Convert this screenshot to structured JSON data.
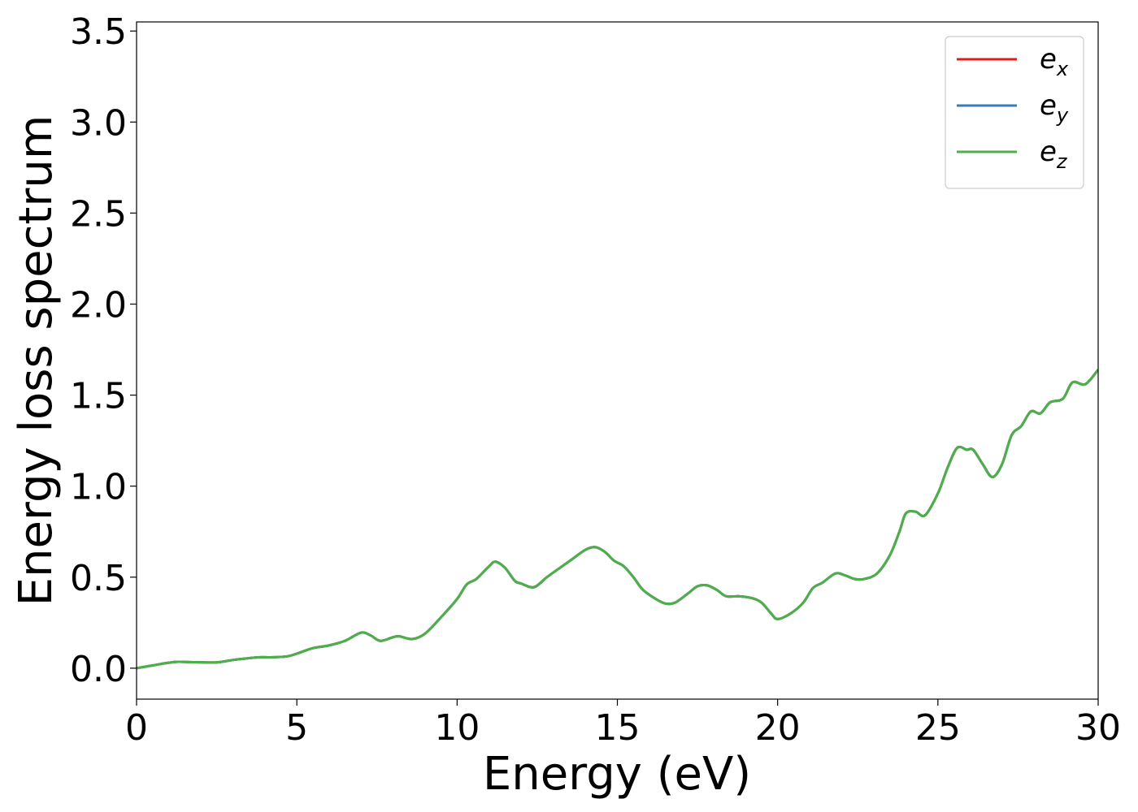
{
  "chart_data": {
    "type": "line",
    "title": "",
    "xlabel": "Energy (eV)",
    "ylabel": "Energy loss spectrum",
    "xlim": [
      0,
      30
    ],
    "ylim": [
      -0.17,
      3.55
    ],
    "xticks": [
      0,
      5,
      10,
      15,
      20,
      25,
      30
    ],
    "xtick_labels": [
      "0",
      "5",
      "10",
      "15",
      "20",
      "25",
      "30"
    ],
    "yticks": [
      0.0,
      0.5,
      1.0,
      1.5,
      2.0,
      2.5,
      3.0,
      3.5
    ],
    "ytick_labels": [
      "0.0",
      "0.5",
      "1.0",
      "1.5",
      "2.0",
      "2.5",
      "3.0",
      "3.5"
    ],
    "grid": false,
    "legend": {
      "placement": "top-right",
      "entries": [
        {
          "base": "e",
          "sub": "x",
          "color": "#e41a1c"
        },
        {
          "base": "e",
          "sub": "y",
          "color": "#377eb8"
        },
        {
          "base": "e",
          "sub": "z",
          "color": "#4daf4a"
        }
      ]
    },
    "x": [
      0,
      0.5,
      1.0,
      1.3,
      1.8,
      2.5,
      3.0,
      3.5,
      3.8,
      4.2,
      4.7,
      5.0,
      5.5,
      6.0,
      6.5,
      7.0,
      7.3,
      7.6,
      8.0,
      8.2,
      8.6,
      9.0,
      9.5,
      10.0,
      10.3,
      10.6,
      11.0,
      11.2,
      11.5,
      11.8,
      12.0,
      12.4,
      12.8,
      13.2,
      13.6,
      14.0,
      14.3,
      14.6,
      14.9,
      15.2,
      15.5,
      15.8,
      16.2,
      16.5,
      16.8,
      17.2,
      17.5,
      17.8,
      18.1,
      18.4,
      18.8,
      19.2,
      19.5,
      19.8,
      20.0,
      20.4,
      20.8,
      21.1,
      21.4,
      21.8,
      22.1,
      22.4,
      22.7,
      23.1,
      23.5,
      23.8,
      24.0,
      24.3,
      24.6,
      25.0,
      25.3,
      25.6,
      25.9,
      26.1,
      26.4,
      26.7,
      27.0,
      27.3,
      27.6,
      27.9,
      28.2,
      28.5,
      28.9,
      29.2,
      29.6,
      30.0
    ],
    "series": [
      {
        "name": "e_x",
        "color": "#e41a1c",
        "y": [
          0.0,
          0.015,
          0.03,
          0.035,
          0.033,
          0.032,
          0.045,
          0.055,
          0.06,
          0.06,
          0.065,
          0.08,
          0.11,
          0.125,
          0.15,
          0.195,
          0.18,
          0.15,
          0.17,
          0.175,
          0.16,
          0.19,
          0.28,
          0.38,
          0.46,
          0.49,
          0.56,
          0.585,
          0.55,
          0.48,
          0.465,
          0.445,
          0.5,
          0.55,
          0.6,
          0.65,
          0.665,
          0.64,
          0.59,
          0.56,
          0.5,
          0.43,
          0.38,
          0.355,
          0.36,
          0.41,
          0.45,
          0.455,
          0.43,
          0.395,
          0.395,
          0.385,
          0.36,
          0.3,
          0.27,
          0.3,
          0.36,
          0.44,
          0.47,
          0.52,
          0.51,
          0.49,
          0.49,
          0.52,
          0.62,
          0.75,
          0.85,
          0.86,
          0.84,
          0.96,
          1.1,
          1.21,
          1.2,
          1.2,
          1.12,
          1.05,
          1.12,
          1.28,
          1.33,
          1.41,
          1.4,
          1.46,
          1.48,
          1.57,
          1.56,
          1.64
        ]
      },
      {
        "name": "e_y",
        "color": "#377eb8",
        "y": [
          0.0,
          0.015,
          0.03,
          0.035,
          0.033,
          0.032,
          0.045,
          0.055,
          0.06,
          0.06,
          0.065,
          0.08,
          0.11,
          0.125,
          0.15,
          0.195,
          0.18,
          0.15,
          0.17,
          0.175,
          0.16,
          0.19,
          0.28,
          0.38,
          0.46,
          0.49,
          0.56,
          0.585,
          0.55,
          0.48,
          0.465,
          0.445,
          0.5,
          0.55,
          0.6,
          0.65,
          0.665,
          0.64,
          0.59,
          0.56,
          0.5,
          0.43,
          0.38,
          0.355,
          0.36,
          0.41,
          0.45,
          0.455,
          0.43,
          0.395,
          0.395,
          0.385,
          0.36,
          0.3,
          0.27,
          0.3,
          0.36,
          0.44,
          0.47,
          0.52,
          0.51,
          0.49,
          0.49,
          0.52,
          0.62,
          0.75,
          0.85,
          0.86,
          0.84,
          0.96,
          1.1,
          1.21,
          1.2,
          1.2,
          1.12,
          1.05,
          1.12,
          1.28,
          1.33,
          1.41,
          1.4,
          1.46,
          1.48,
          1.57,
          1.56,
          1.64
        ]
      },
      {
        "name": "e_z",
        "color": "#4daf4a",
        "y": [
          0.0,
          0.015,
          0.03,
          0.035,
          0.033,
          0.032,
          0.045,
          0.055,
          0.06,
          0.06,
          0.065,
          0.08,
          0.11,
          0.125,
          0.15,
          0.195,
          0.18,
          0.15,
          0.17,
          0.175,
          0.16,
          0.19,
          0.28,
          0.38,
          0.46,
          0.49,
          0.56,
          0.585,
          0.55,
          0.48,
          0.465,
          0.445,
          0.5,
          0.55,
          0.6,
          0.65,
          0.665,
          0.64,
          0.59,
          0.56,
          0.5,
          0.43,
          0.38,
          0.355,
          0.36,
          0.41,
          0.45,
          0.455,
          0.43,
          0.395,
          0.395,
          0.385,
          0.36,
          0.3,
          0.27,
          0.3,
          0.36,
          0.44,
          0.47,
          0.52,
          0.51,
          0.49,
          0.49,
          0.52,
          0.62,
          0.75,
          0.85,
          0.86,
          0.84,
          0.96,
          1.1,
          1.21,
          1.2,
          1.2,
          1.12,
          1.05,
          1.12,
          1.28,
          1.33,
          1.41,
          1.4,
          1.46,
          1.48,
          1.57,
          1.56,
          1.64
        ]
      }
    ]
  }
}
